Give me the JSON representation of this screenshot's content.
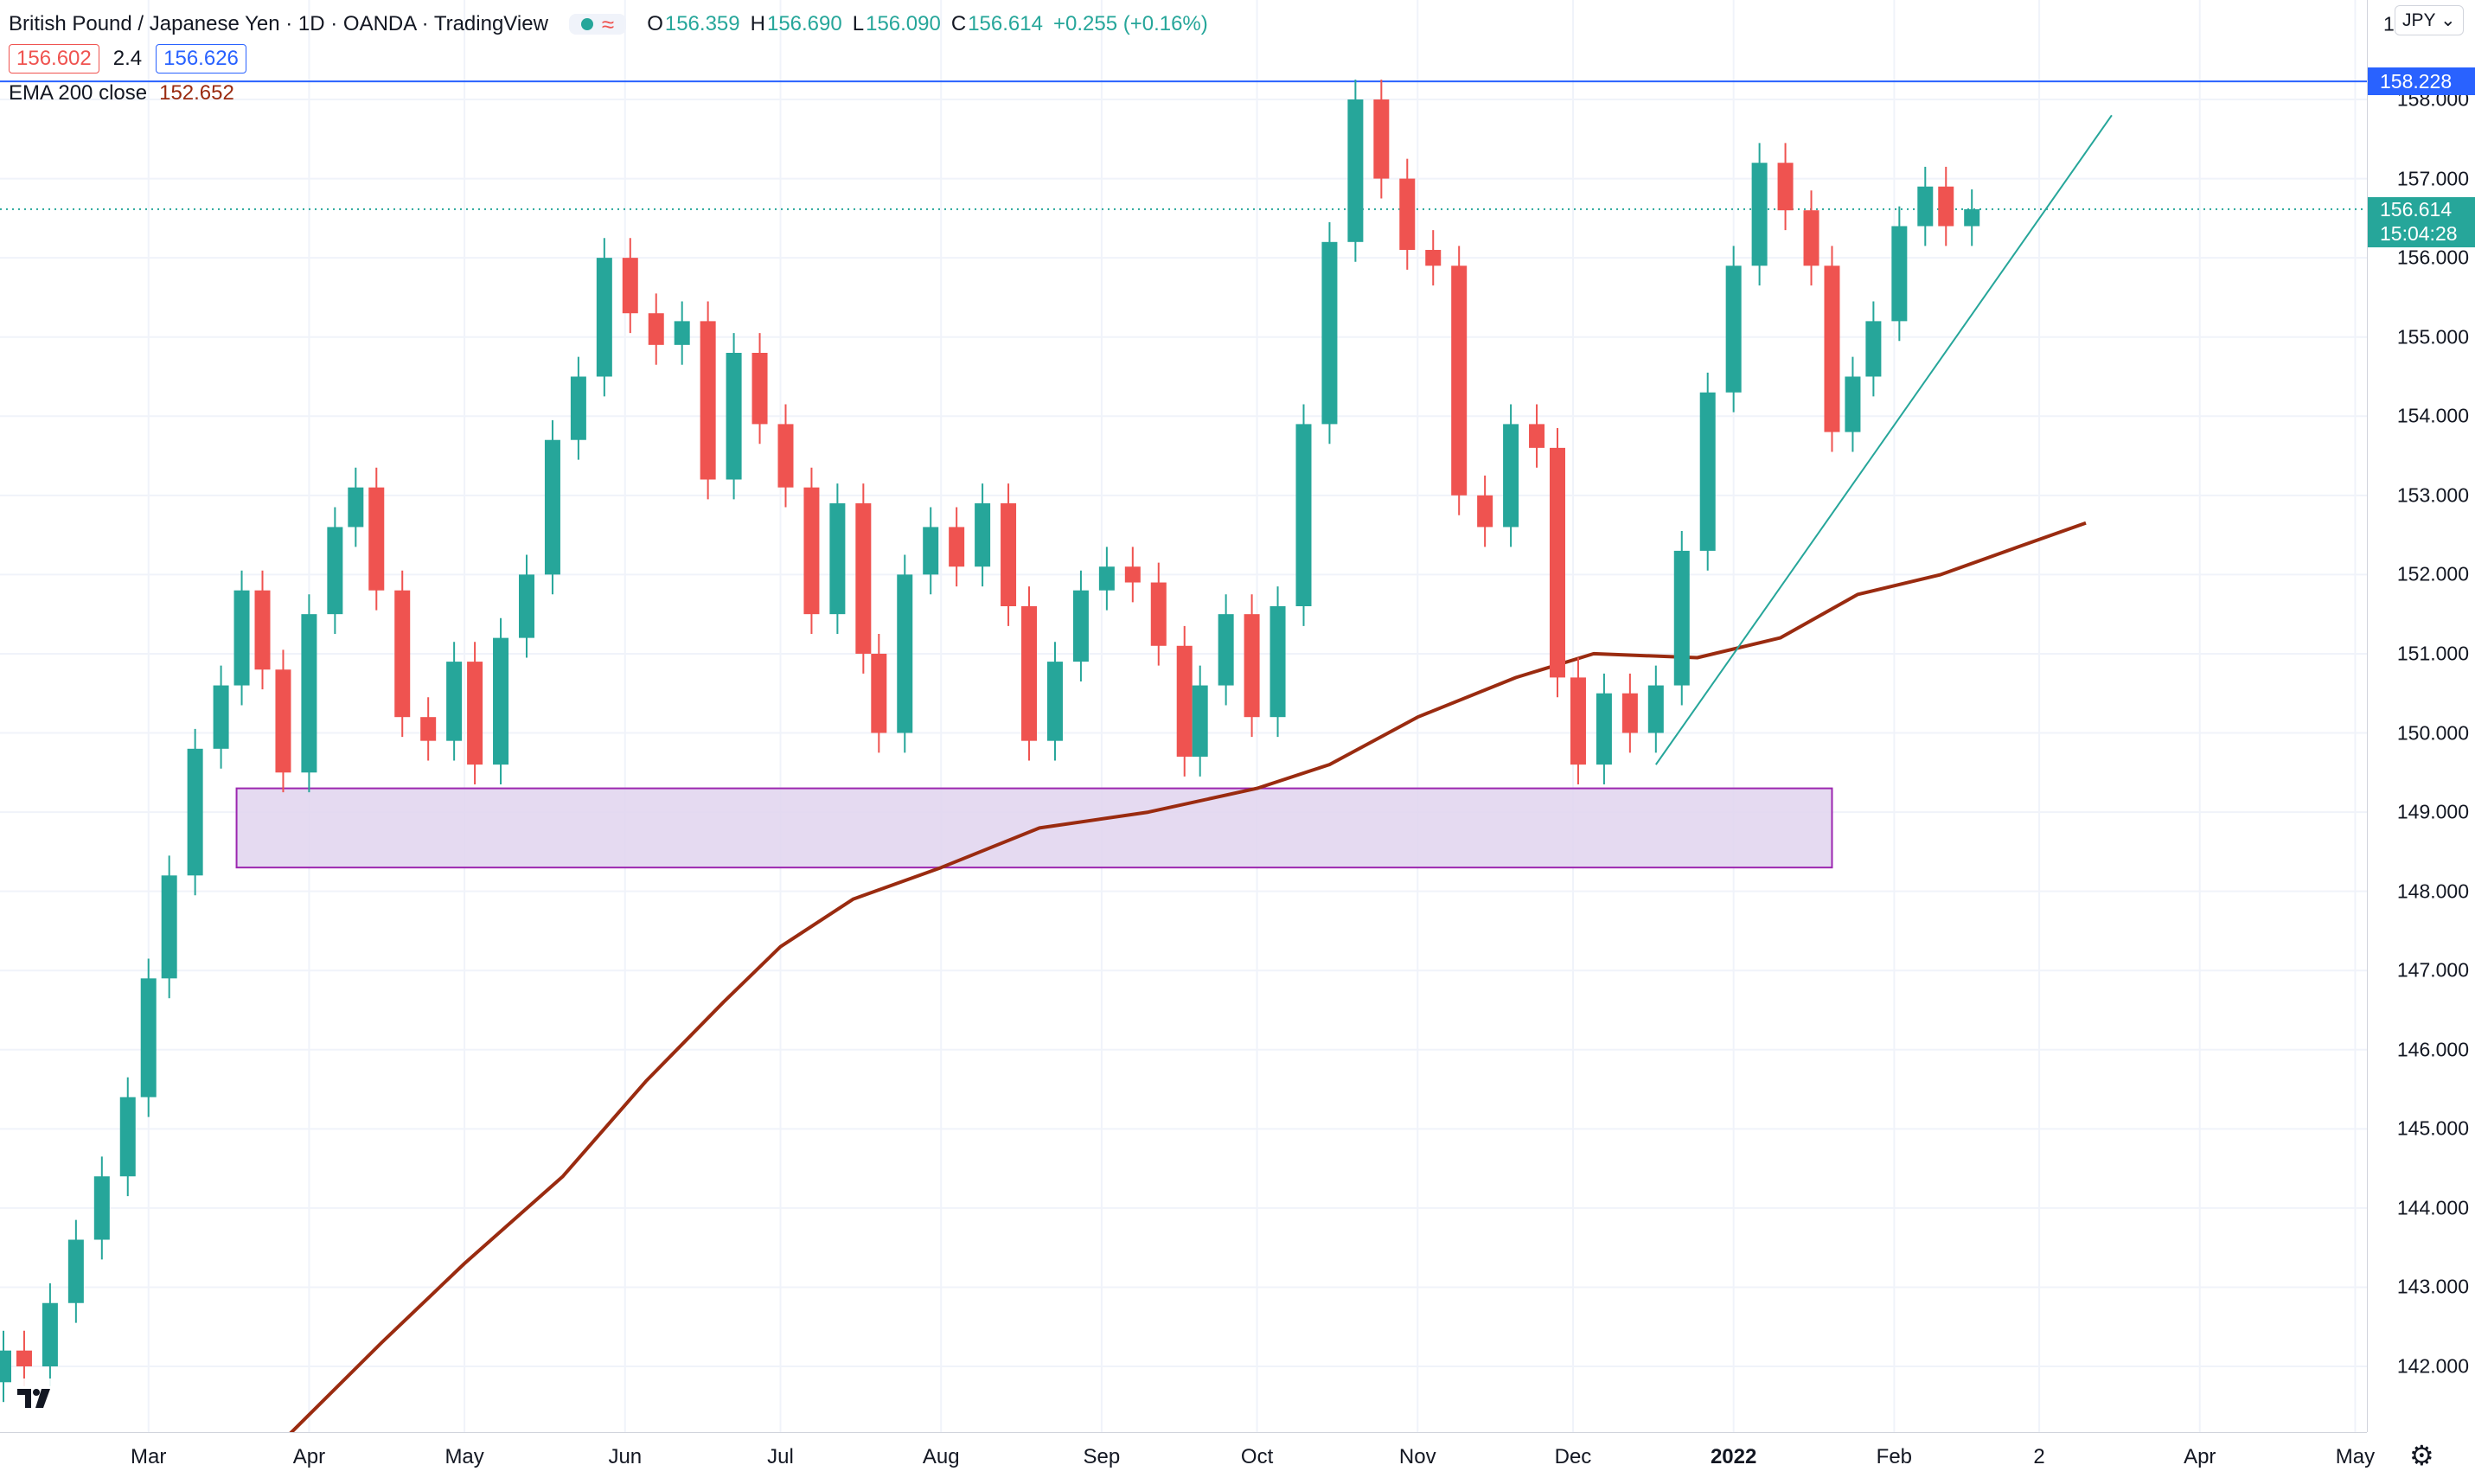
{
  "header": {
    "title": "British Pound / Japanese Yen · 1D · OANDA · TradingView",
    "ohlc": [
      {
        "label": "O",
        "value": "156.359"
      },
      {
        "label": "H",
        "value": "156.690"
      },
      {
        "label": "L",
        "value": "156.090"
      },
      {
        "label": "C",
        "value": "156.614"
      }
    ],
    "change": "+0.255 (+0.16%)",
    "bid": "156.602",
    "spread": "2.4",
    "ask": "156.626",
    "indicator_name": "EMA 200 close",
    "indicator_value": "152.652"
  },
  "price_axis": {
    "currency_button": "JPY",
    "ticks": [
      "158.000",
      "157.000",
      "156.000",
      "155.000",
      "154.000",
      "153.000",
      "152.000",
      "151.000",
      "150.000",
      "149.000",
      "148.000",
      "147.000",
      "146.000",
      "145.000",
      "144.000",
      "143.000",
      "142.000"
    ],
    "top_partial": "1",
    "level_tag": "158.228",
    "last_price_tag": "156.614",
    "countdown_tag": "15:04:28"
  },
  "time_axis": {
    "labels": [
      {
        "text": "Mar",
        "bold": false
      },
      {
        "text": "Apr",
        "bold": false
      },
      {
        "text": "May",
        "bold": false
      },
      {
        "text": "Jun",
        "bold": false
      },
      {
        "text": "Jul",
        "bold": false
      },
      {
        "text": "Aug",
        "bold": false
      },
      {
        "text": "Sep",
        "bold": false
      },
      {
        "text": "Oct",
        "bold": false
      },
      {
        "text": "Nov",
        "bold": false
      },
      {
        "text": "Dec",
        "bold": false
      },
      {
        "text": "2022",
        "bold": true
      },
      {
        "text": "Feb",
        "bold": false
      },
      {
        "text": "2",
        "bold": false
      },
      {
        "text": "Apr",
        "bold": false
      },
      {
        "text": "May",
        "bold": false
      }
    ]
  },
  "colors": {
    "up": "#26a69a",
    "down": "#ef5350",
    "ema": "#9a2b10",
    "horizontal_level": "#2962ff",
    "zone_fill": "#e1d3ee",
    "zone_border": "#9c27b0",
    "trendline": "#26a69a",
    "grid": "#f0f3fa"
  },
  "chart_data": {
    "type": "candlestick",
    "symbol": "British Pound / Japanese Yen",
    "interval": "1D",
    "ylim": [
      141.0,
      159.0
    ],
    "x_range": [
      "2021-02-01",
      "2022-05-20"
    ],
    "horizontal_line": 158.228,
    "current_price": 156.614,
    "support_zone": {
      "start": "2021-03-18",
      "end": "2022-01-20",
      "low": 148.3,
      "high": 149.3
    },
    "trendline": {
      "start": {
        "date": "2021-12-17",
        "price": 149.6
      },
      "end": {
        "date": "2022-03-15",
        "price": 157.8
      }
    },
    "ema200": [
      {
        "date": "2021-03-26",
        "value": 141.0
      },
      {
        "date": "2021-04-15",
        "value": 142.3
      },
      {
        "date": "2021-05-01",
        "value": 143.3
      },
      {
        "date": "2021-05-20",
        "value": 144.4
      },
      {
        "date": "2021-06-05",
        "value": 145.6
      },
      {
        "date": "2021-06-20",
        "value": 146.6
      },
      {
        "date": "2021-07-01",
        "value": 147.3
      },
      {
        "date": "2021-07-15",
        "value": 147.9
      },
      {
        "date": "2021-08-01",
        "value": 148.3
      },
      {
        "date": "2021-08-20",
        "value": 148.8
      },
      {
        "date": "2021-09-10",
        "value": 149.0
      },
      {
        "date": "2021-10-01",
        "value": 149.3
      },
      {
        "date": "2021-10-15",
        "value": 149.6
      },
      {
        "date": "2021-11-01",
        "value": 150.2
      },
      {
        "date": "2021-11-20",
        "value": 150.7
      },
      {
        "date": "2021-12-05",
        "value": 151.0
      },
      {
        "date": "2021-12-25",
        "value": 150.95
      },
      {
        "date": "2022-01-10",
        "value": 151.2
      },
      {
        "date": "2022-01-25",
        "value": 151.75
      },
      {
        "date": "2022-02-10",
        "value": 152.0
      },
      {
        "date": "2022-02-25",
        "value": 152.35
      },
      {
        "date": "2022-03-10",
        "value": 152.652
      }
    ],
    "candles": [
      {
        "date": "2021-02-01",
        "open": 141.8,
        "close": 142.2
      },
      {
        "date": "2021-02-05",
        "open": 142.2,
        "close": 142.0
      },
      {
        "date": "2021-02-10",
        "open": 142.0,
        "close": 142.8
      },
      {
        "date": "2021-02-15",
        "open": 142.8,
        "close": 143.6
      },
      {
        "date": "2021-02-20",
        "open": 143.6,
        "close": 144.4
      },
      {
        "date": "2021-02-25",
        "open": 144.4,
        "close": 145.4
      },
      {
        "date": "2021-03-01",
        "open": 145.4,
        "close": 146.9
      },
      {
        "date": "2021-03-05",
        "open": 146.9,
        "close": 148.2
      },
      {
        "date": "2021-03-10",
        "open": 148.2,
        "close": 149.8
      },
      {
        "date": "2021-03-15",
        "open": 149.8,
        "close": 150.6
      },
      {
        "date": "2021-03-19",
        "open": 150.6,
        "close": 151.8
      },
      {
        "date": "2021-03-23",
        "open": 151.8,
        "close": 150.8
      },
      {
        "date": "2021-03-27",
        "open": 150.8,
        "close": 149.5
      },
      {
        "date": "2021-04-01",
        "open": 149.5,
        "close": 151.5
      },
      {
        "date": "2021-04-06",
        "open": 151.5,
        "close": 152.6
      },
      {
        "date": "2021-04-10",
        "open": 152.6,
        "close": 153.1
      },
      {
        "date": "2021-04-14",
        "open": 153.1,
        "close": 151.8
      },
      {
        "date": "2021-04-19",
        "open": 151.8,
        "close": 150.2
      },
      {
        "date": "2021-04-24",
        "open": 150.2,
        "close": 149.9
      },
      {
        "date": "2021-04-29",
        "open": 149.9,
        "close": 150.9
      },
      {
        "date": "2021-05-03",
        "open": 150.9,
        "close": 149.6
      },
      {
        "date": "2021-05-08",
        "open": 149.6,
        "close": 151.2
      },
      {
        "date": "2021-05-13",
        "open": 151.2,
        "close": 152.0
      },
      {
        "date": "2021-05-18",
        "open": 152.0,
        "close": 153.7
      },
      {
        "date": "2021-05-23",
        "open": 153.7,
        "close": 154.5
      },
      {
        "date": "2021-05-28",
        "open": 154.5,
        "close": 156.0
      },
      {
        "date": "2021-06-02",
        "open": 156.0,
        "close": 155.3
      },
      {
        "date": "2021-06-07",
        "open": 155.3,
        "close": 154.9
      },
      {
        "date": "2021-06-12",
        "open": 154.9,
        "close": 155.2
      },
      {
        "date": "2021-06-17",
        "open": 155.2,
        "close": 153.2
      },
      {
        "date": "2021-06-22",
        "open": 153.2,
        "close": 154.8
      },
      {
        "date": "2021-06-27",
        "open": 154.8,
        "close": 153.9
      },
      {
        "date": "2021-07-02",
        "open": 153.9,
        "close": 153.1
      },
      {
        "date": "2021-07-07",
        "open": 153.1,
        "close": 151.5
      },
      {
        "date": "2021-07-12",
        "open": 151.5,
        "close": 152.9
      },
      {
        "date": "2021-07-17",
        "open": 152.9,
        "close": 151.0
      },
      {
        "date": "2021-07-20",
        "open": 151.0,
        "close": 150.0
      },
      {
        "date": "2021-07-25",
        "open": 150.0,
        "close": 152.0
      },
      {
        "date": "2021-07-30",
        "open": 152.0,
        "close": 152.6
      },
      {
        "date": "2021-08-04",
        "open": 152.6,
        "close": 152.1
      },
      {
        "date": "2021-08-09",
        "open": 152.1,
        "close": 152.9
      },
      {
        "date": "2021-08-14",
        "open": 152.9,
        "close": 151.6
      },
      {
        "date": "2021-08-18",
        "open": 151.6,
        "close": 149.9
      },
      {
        "date": "2021-08-23",
        "open": 149.9,
        "close": 150.9
      },
      {
        "date": "2021-08-28",
        "open": 150.9,
        "close": 151.8
      },
      {
        "date": "2021-09-02",
        "open": 151.8,
        "close": 152.1
      },
      {
        "date": "2021-09-07",
        "open": 152.1,
        "close": 151.9
      },
      {
        "date": "2021-09-12",
        "open": 151.9,
        "close": 151.1
      },
      {
        "date": "2021-09-17",
        "open": 151.1,
        "close": 149.7
      },
      {
        "date": "2021-09-20",
        "open": 149.7,
        "close": 150.6
      },
      {
        "date": "2021-09-25",
        "open": 150.6,
        "close": 151.5
      },
      {
        "date": "2021-09-30",
        "open": 151.5,
        "close": 150.2
      },
      {
        "date": "2021-10-05",
        "open": 150.2,
        "close": 151.6
      },
      {
        "date": "2021-10-10",
        "open": 151.6,
        "close": 153.9
      },
      {
        "date": "2021-10-15",
        "open": 153.9,
        "close": 156.2
      },
      {
        "date": "2021-10-20",
        "open": 156.2,
        "close": 158.0
      },
      {
        "date": "2021-10-25",
        "open": 158.0,
        "close": 157.0
      },
      {
        "date": "2021-10-30",
        "open": 157.0,
        "close": 156.1
      },
      {
        "date": "2021-11-04",
        "open": 156.1,
        "close": 155.9
      },
      {
        "date": "2021-11-09",
        "open": 155.9,
        "close": 153.0
      },
      {
        "date": "2021-11-14",
        "open": 153.0,
        "close": 152.6
      },
      {
        "date": "2021-11-19",
        "open": 152.6,
        "close": 153.9
      },
      {
        "date": "2021-11-24",
        "open": 153.9,
        "close": 153.6
      },
      {
        "date": "2021-11-28",
        "open": 153.6,
        "close": 150.7
      },
      {
        "date": "2021-12-02",
        "open": 150.7,
        "close": 149.6
      },
      {
        "date": "2021-12-07",
        "open": 149.6,
        "close": 150.5
      },
      {
        "date": "2021-12-12",
        "open": 150.5,
        "close": 150.0
      },
      {
        "date": "2021-12-17",
        "open": 150.0,
        "close": 150.6
      },
      {
        "date": "2021-12-22",
        "open": 150.6,
        "close": 152.3
      },
      {
        "date": "2021-12-27",
        "open": 152.3,
        "close": 154.3
      },
      {
        "date": "2022-01-01",
        "open": 154.3,
        "close": 155.9
      },
      {
        "date": "2022-01-06",
        "open": 155.9,
        "close": 157.2
      },
      {
        "date": "2022-01-11",
        "open": 157.2,
        "close": 156.6
      },
      {
        "date": "2022-01-16",
        "open": 156.6,
        "close": 155.9
      },
      {
        "date": "2022-01-20",
        "open": 155.9,
        "close": 153.8
      },
      {
        "date": "2022-01-24",
        "open": 153.8,
        "close": 154.5
      },
      {
        "date": "2022-01-28",
        "open": 154.5,
        "close": 155.2
      },
      {
        "date": "2022-02-02",
        "open": 155.2,
        "close": 156.4
      },
      {
        "date": "2022-02-07",
        "open": 156.4,
        "close": 156.9
      },
      {
        "date": "2022-02-11",
        "open": 156.9,
        "close": 156.4
      },
      {
        "date": "2022-02-16",
        "open": 156.4,
        "close": 156.614
      }
    ]
  }
}
